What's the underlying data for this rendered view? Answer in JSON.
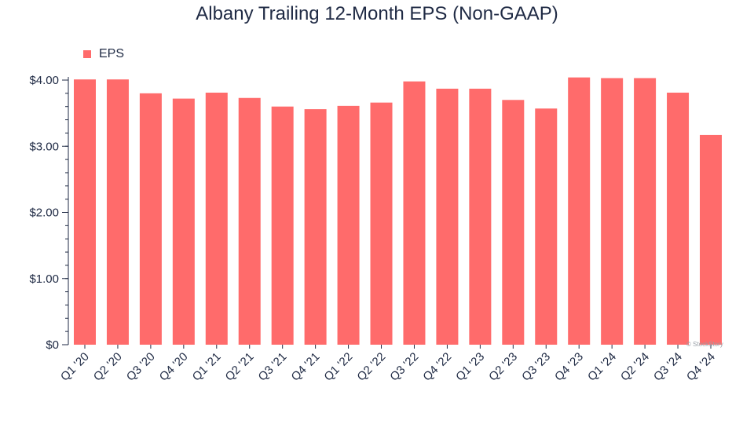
{
  "title": "Albany Trailing 12-Month EPS (Non-GAAP)",
  "watermark": "© StockStory",
  "legend": {
    "label": "EPS"
  },
  "colors": {
    "bar": "#ff6b6b",
    "axis": "#1f2a44",
    "text": "#1f2a44"
  },
  "chart_data": {
    "type": "bar",
    "title": "Albany Trailing 12-Month EPS (Non-GAAP)",
    "xlabel": "",
    "ylabel": "",
    "ylim": [
      0,
      4.0
    ],
    "y_ticks": [
      0,
      1,
      2,
      3,
      4
    ],
    "y_tick_labels": [
      "$0",
      "$1.00",
      "$2.00",
      "$3.00",
      "$4.00"
    ],
    "grid": false,
    "legend_position": "top-left",
    "categories": [
      "Q1 '20",
      "Q2 '20",
      "Q3 '20",
      "Q4 '20",
      "Q1 '21",
      "Q2 '21",
      "Q3 '21",
      "Q4 '21",
      "Q1 '22",
      "Q2 '22",
      "Q3 '22",
      "Q4 '22",
      "Q1 '23",
      "Q2 '23",
      "Q3 '23",
      "Q4 '23",
      "Q1 '24",
      "Q2 '24",
      "Q3 '24",
      "Q4 '24"
    ],
    "series": [
      {
        "name": "EPS",
        "values": [
          4.01,
          4.01,
          3.8,
          3.72,
          3.81,
          3.73,
          3.6,
          3.56,
          3.61,
          3.66,
          3.98,
          3.87,
          3.87,
          3.7,
          3.57,
          4.04,
          4.03,
          4.03,
          3.81,
          3.17
        ]
      }
    ]
  }
}
